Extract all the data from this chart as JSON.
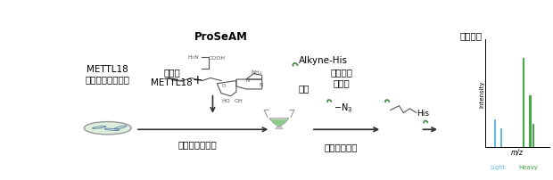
{
  "bg_color": "#ffffff",
  "fig_width": 6.2,
  "fig_height": 2.03,
  "dpi": 100,
  "title_proseam": "ProSeAM",
  "label_recombinant": "組換え\nMETTL18",
  "label_plus": "+",
  "label_knockout": "METTL18\nノックアウト細胞",
  "label_propargylation": "プロパルギル化",
  "label_alkyne_his": "Alkyne-His",
  "label_substrate": "基質",
  "label_biotin_azide": "ビオチン\nアジド",
  "label_n3": "-N₃",
  "label_click": "クリック反応",
  "label_his": "His",
  "label_mass": "質量分析",
  "label_intensity": "Intensity",
  "label_mz": "m/z",
  "label_light": "Light",
  "label_heavy": "Heavy",
  "arrow_color": "#333333",
  "green_color": "#4a8a4a",
  "green_light": "#6aaa6a",
  "light_bar_color": "#66bbdd",
  "heavy_bar_color": "#44aa44",
  "cell_fill": "#ddeedd",
  "cell_outline": "#888888",
  "struct_color": "#555555"
}
